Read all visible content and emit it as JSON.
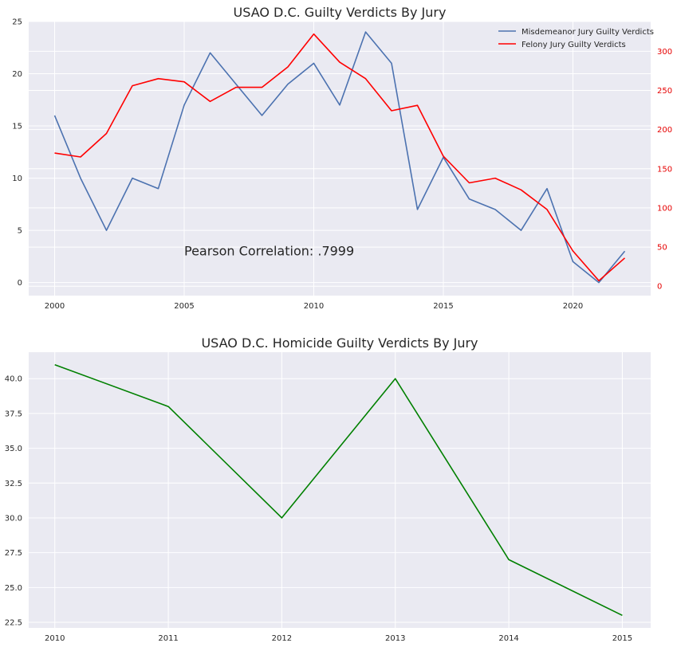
{
  "colors": {
    "background": "#EAEAF2",
    "grid": "#FFFFFF",
    "misdemeanor": "#4C72B0",
    "felony": "#FF0000",
    "homicide": "#008000",
    "text": "#262626"
  },
  "chart_data": [
    {
      "type": "line",
      "title": "USAO D.C. Guilty Verdicts By Jury",
      "x": [
        2000,
        2001,
        2002,
        2003,
        2004,
        2005,
        2006,
        2007,
        2008,
        2009,
        2010,
        2011,
        2012,
        2013,
        2014,
        2015,
        2016,
        2017,
        2018,
        2019,
        2020,
        2021,
        2022
      ],
      "xlim": [
        1999.0,
        2023.0
      ],
      "xticks": [
        2000,
        2005,
        2010,
        2015,
        2020
      ],
      "series": [
        {
          "name": "Misdemeanor Jury Guilty Verdicts",
          "axis": "left",
          "color": "#4C72B0",
          "values": [
            16,
            10,
            5,
            10,
            9,
            17,
            22,
            19,
            16,
            19,
            21,
            17,
            24,
            21,
            7,
            12,
            8,
            7,
            5,
            9,
            2,
            0,
            3
          ]
        },
        {
          "name": "Felony Jury Guilty Verdicts",
          "axis": "right",
          "color": "#FF0000",
          "values": [
            170,
            165,
            195,
            256,
            265,
            261,
            236,
            254,
            254,
            280,
            322,
            286,
            265,
            224,
            231,
            166,
            132,
            138,
            123,
            98,
            45,
            7,
            36
          ]
        }
      ],
      "ylim_left": [
        -1.25,
        25.0
      ],
      "yticks_left": [
        0,
        5,
        10,
        15,
        20,
        25
      ],
      "ylim_right": [
        -12,
        338
      ],
      "yticks_right": [
        0,
        50,
        100,
        150,
        200,
        250,
        300
      ],
      "legend": "top-right",
      "grid": true,
      "annotation": {
        "text": "Pearson Correlation: .7999",
        "x": 2005,
        "y": 3
      }
    },
    {
      "type": "line",
      "title": "USAO D.C. Homicide Guilty Verdicts By Jury",
      "x": [
        2010,
        2011,
        2012,
        2013,
        2014,
        2015
      ],
      "xlim": [
        2009.77,
        2015.25
      ],
      "xticks": [
        2010,
        2011,
        2012,
        2013,
        2014,
        2015
      ],
      "series": [
        {
          "color": "#008000",
          "values": [
            41,
            38,
            30,
            40,
            27,
            23
          ]
        }
      ],
      "ylim": [
        22.1,
        41.9
      ],
      "yticks": [
        "22.5",
        "25.0",
        "27.5",
        "30.0",
        "32.5",
        "35.0",
        "37.5",
        "40.0"
      ],
      "grid": true
    }
  ]
}
